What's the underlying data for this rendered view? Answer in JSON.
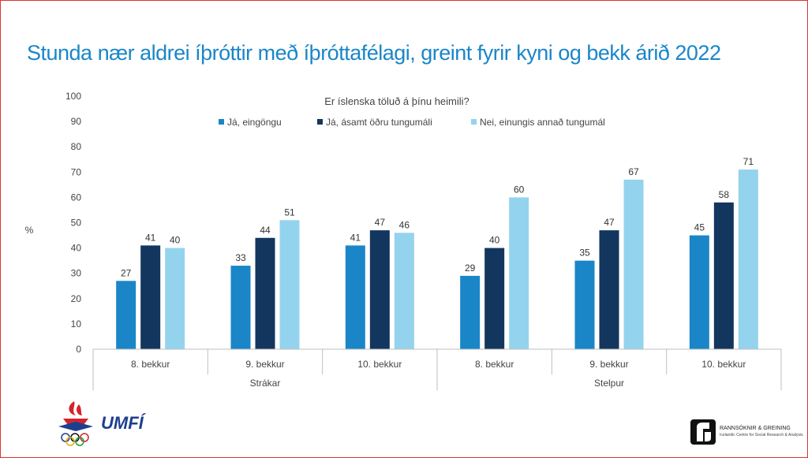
{
  "title": "Stunda nær aldrei íþróttir með íþróttafélagi, greint fyrir kyni og bekk árið 2022",
  "logos": {
    "left_text": "UMFÍ",
    "right_line1": "RANNSÓKNIR & GREINING",
    "right_line2": "Icelandic Centre for Social Research & Analysis"
  },
  "chart_data": {
    "type": "bar",
    "ylabel": "%",
    "ylim": [
      0,
      100
    ],
    "yticks": [
      0,
      10,
      20,
      30,
      40,
      50,
      60,
      70,
      80,
      90,
      100
    ],
    "legend_title": "Er íslenska töluð á þínu heimili?",
    "legend_position": "top",
    "grid": false,
    "groups": [
      "Strákar",
      "Stelpur"
    ],
    "categories": [
      "8.  bekkur",
      "9.  bekkur",
      "10.  bekkur",
      "8.  bekkur",
      "9.  bekkur",
      "10.  bekkur"
    ],
    "series": [
      {
        "name": "Já, eingöngu",
        "color": "#1a86c8",
        "values": [
          27,
          33,
          41,
          29,
          35,
          45
        ]
      },
      {
        "name": "Já, ásamt öðru tungumáli",
        "color": "#13365e",
        "values": [
          41,
          44,
          47,
          40,
          47,
          58
        ]
      },
      {
        "name": "Nei, einungis annað tungumál",
        "color": "#94d3ee",
        "values": [
          40,
          51,
          46,
          60,
          67,
          71
        ]
      }
    ]
  }
}
